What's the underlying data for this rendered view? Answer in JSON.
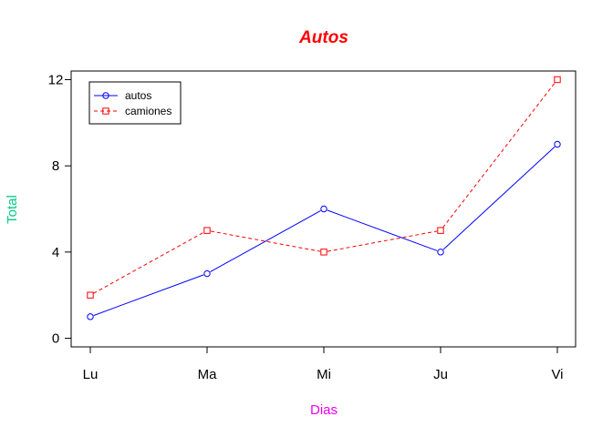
{
  "chart_data": {
    "type": "line",
    "title": "Autos",
    "xlabel": "Dias",
    "ylabel": "Total",
    "categories": [
      "Lu",
      "Ma",
      "Mi",
      "Ju",
      "Vi"
    ],
    "ylim": [
      -0.4,
      12.4
    ],
    "yticks": [
      0,
      4,
      8,
      12
    ],
    "grid": false,
    "legend_position": "top-left",
    "series": [
      {
        "name": "autos",
        "values": [
          1,
          3,
          6,
          4,
          9
        ],
        "color": "#0000ff",
        "line": "solid",
        "marker": "circle"
      },
      {
        "name": "camiones",
        "values": [
          2,
          5,
          4,
          5,
          12
        ],
        "color": "#ff0000",
        "line": "dashed",
        "marker": "square"
      }
    ],
    "colors": {
      "title": "#ff0000",
      "xlabel": "#ee00ee",
      "ylabel": "#00cc88"
    }
  }
}
